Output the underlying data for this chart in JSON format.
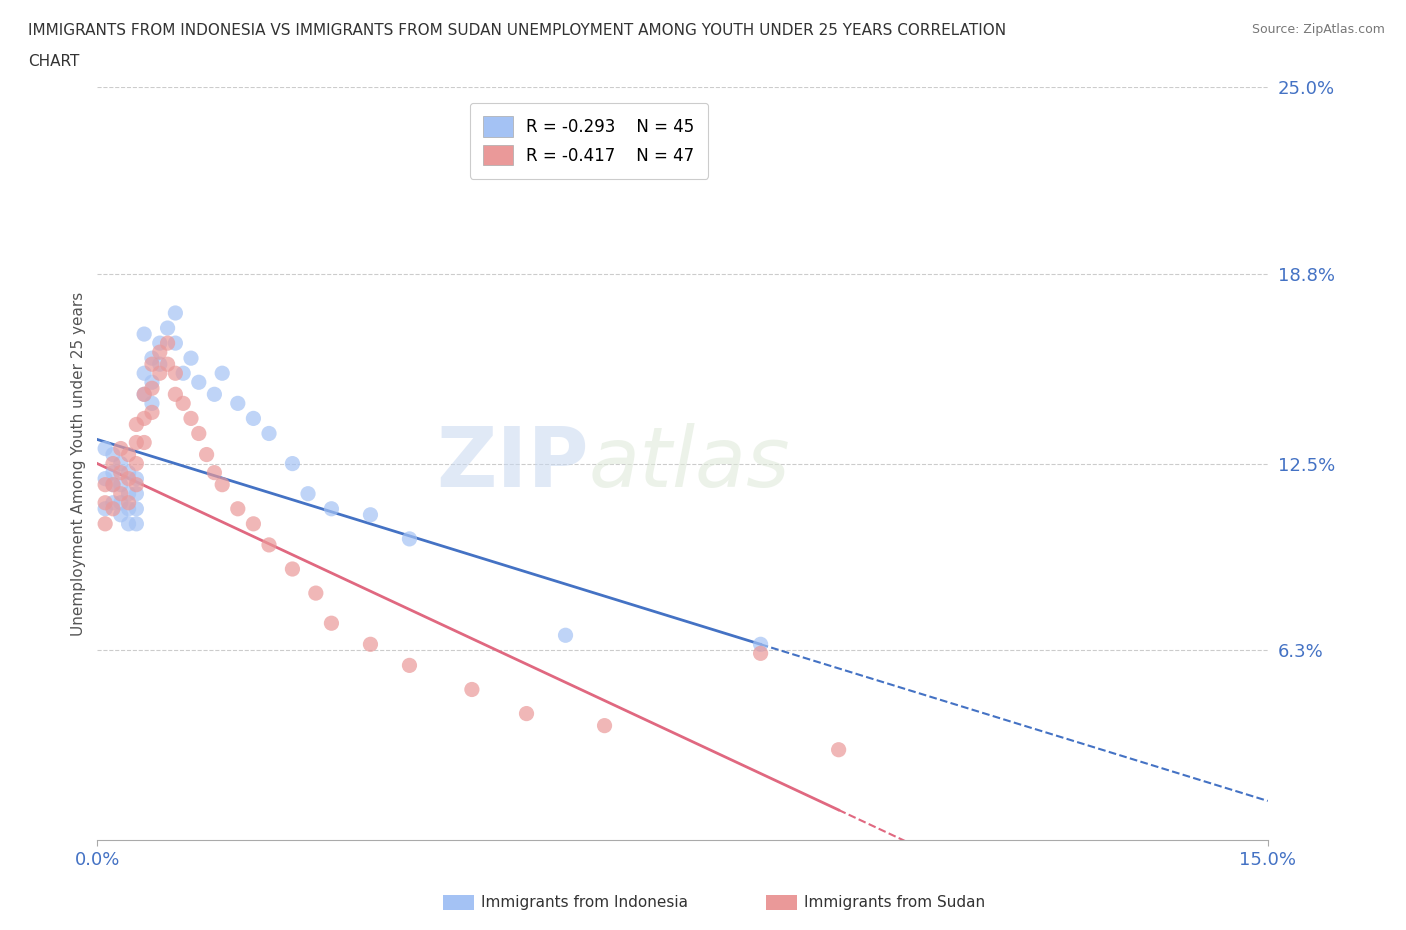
{
  "title_line1": "IMMIGRANTS FROM INDONESIA VS IMMIGRANTS FROM SUDAN UNEMPLOYMENT AMONG YOUTH UNDER 25 YEARS CORRELATION",
  "title_line2": "CHART",
  "source": "Source: ZipAtlas.com",
  "ylabel": "Unemployment Among Youth under 25 years",
  "x_min": 0.0,
  "x_max": 0.15,
  "y_min": 0.0,
  "y_max": 0.25,
  "indonesia_color": "#a4c2f4",
  "sudan_color": "#ea9999",
  "indonesia_label": "Immigrants from Indonesia",
  "sudan_label": "Immigrants from Sudan",
  "legend_r_indonesia": "R = -0.293",
  "legend_n_indonesia": "N = 45",
  "legend_r_sudan": "R = -0.417",
  "legend_n_sudan": "N = 47",
  "watermark_zip": "ZIP",
  "watermark_atlas": "atlas",
  "trendline_color_indonesia": "#4472c4",
  "trendline_color_sudan": "#e06880",
  "grid_color": "#cccccc",
  "indonesia_scatter_x": [
    0.001,
    0.001,
    0.001,
    0.002,
    0.002,
    0.002,
    0.002,
    0.003,
    0.003,
    0.003,
    0.003,
    0.004,
    0.004,
    0.004,
    0.004,
    0.005,
    0.005,
    0.005,
    0.005,
    0.006,
    0.006,
    0.006,
    0.007,
    0.007,
    0.007,
    0.008,
    0.008,
    0.009,
    0.01,
    0.01,
    0.011,
    0.012,
    0.013,
    0.015,
    0.016,
    0.018,
    0.02,
    0.022,
    0.025,
    0.027,
    0.03,
    0.035,
    0.04,
    0.06,
    0.085
  ],
  "indonesia_scatter_y": [
    0.13,
    0.12,
    0.11,
    0.128,
    0.122,
    0.118,
    0.112,
    0.125,
    0.118,
    0.112,
    0.108,
    0.122,
    0.115,
    0.11,
    0.105,
    0.12,
    0.115,
    0.11,
    0.105,
    0.168,
    0.155,
    0.148,
    0.16,
    0.152,
    0.145,
    0.165,
    0.158,
    0.17,
    0.175,
    0.165,
    0.155,
    0.16,
    0.152,
    0.148,
    0.155,
    0.145,
    0.14,
    0.135,
    0.125,
    0.115,
    0.11,
    0.108,
    0.1,
    0.068,
    0.065
  ],
  "sudan_scatter_x": [
    0.001,
    0.001,
    0.001,
    0.002,
    0.002,
    0.002,
    0.003,
    0.003,
    0.003,
    0.004,
    0.004,
    0.004,
    0.005,
    0.005,
    0.005,
    0.005,
    0.006,
    0.006,
    0.006,
    0.007,
    0.007,
    0.007,
    0.008,
    0.008,
    0.009,
    0.009,
    0.01,
    0.01,
    0.011,
    0.012,
    0.013,
    0.014,
    0.015,
    0.016,
    0.018,
    0.02,
    0.022,
    0.025,
    0.028,
    0.03,
    0.035,
    0.04,
    0.048,
    0.055,
    0.065,
    0.085,
    0.095
  ],
  "sudan_scatter_y": [
    0.118,
    0.112,
    0.105,
    0.125,
    0.118,
    0.11,
    0.13,
    0.122,
    0.115,
    0.128,
    0.12,
    0.112,
    0.138,
    0.132,
    0.125,
    0.118,
    0.148,
    0.14,
    0.132,
    0.158,
    0.15,
    0.142,
    0.162,
    0.155,
    0.165,
    0.158,
    0.155,
    0.148,
    0.145,
    0.14,
    0.135,
    0.128,
    0.122,
    0.118,
    0.11,
    0.105,
    0.098,
    0.09,
    0.082,
    0.072,
    0.065,
    0.058,
    0.05,
    0.042,
    0.038,
    0.062,
    0.03
  ],
  "indo_trend_x0": 0.0,
  "indo_trend_y0": 0.133,
  "indo_trend_x1": 0.085,
  "indo_trend_y1": 0.065,
  "sudan_trend_x0": 0.0,
  "sudan_trend_y0": 0.125,
  "sudan_trend_x1": 0.095,
  "sudan_trend_y1": 0.01
}
